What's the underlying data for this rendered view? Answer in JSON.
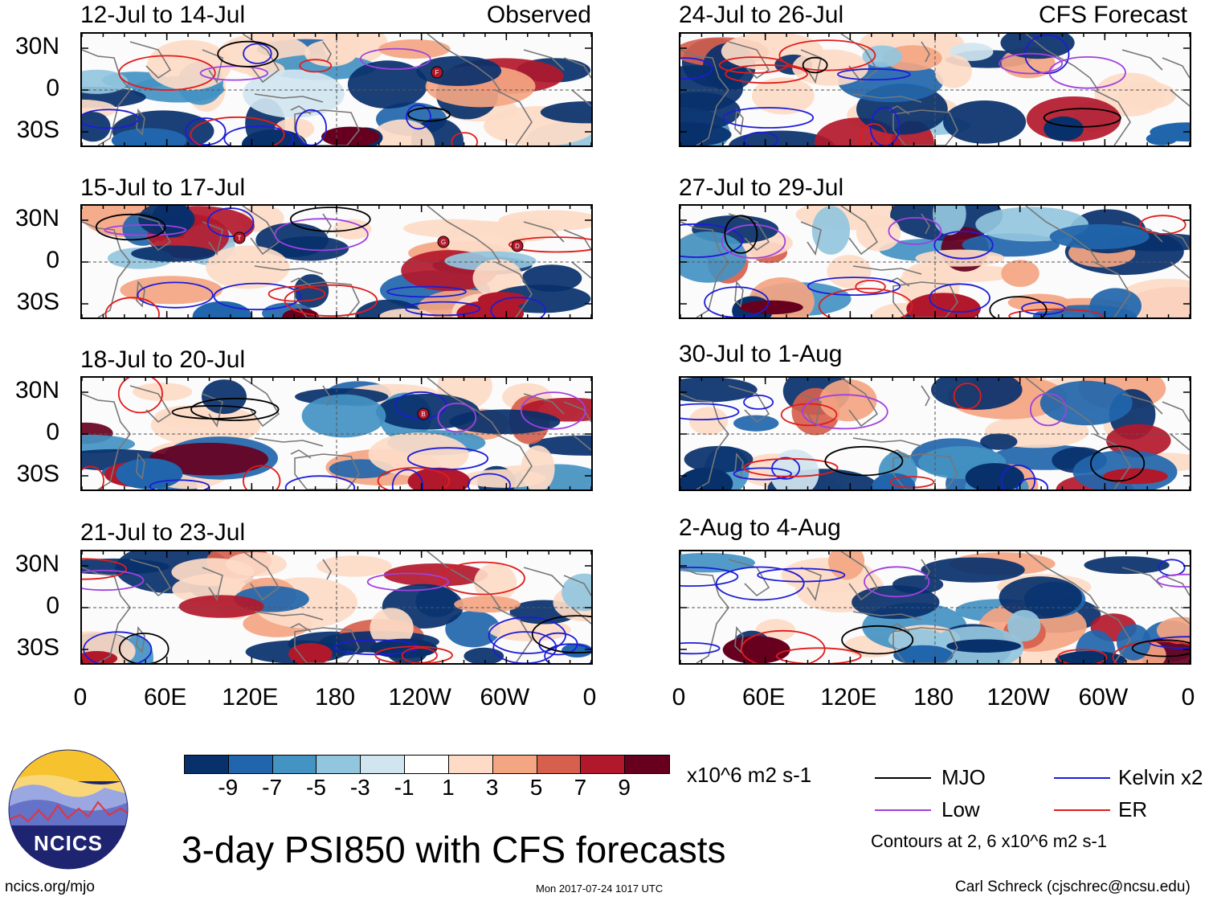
{
  "colors": {
    "mjo": "#000000",
    "kelvin": "#1c1cd8",
    "low": "#a040e0",
    "er": "#e01c1c",
    "land_outline": "#777777",
    "neg": [
      "#08306b",
      "#2166ac",
      "#4393c3",
      "#92c5de",
      "#d1e5f0"
    ],
    "neutral": "#ffffff",
    "pos": [
      "#fddbc7",
      "#f4a582",
      "#d6604d",
      "#b2182b",
      "#67001f"
    ]
  },
  "observed": {
    "tag": "Observed",
    "panels": [
      {
        "title": "12-Jul to 14-Jul",
        "storms": [
          "F"
        ]
      },
      {
        "title": "15-Jul to 17-Jul",
        "storms": [
          "T",
          "G",
          "D"
        ]
      },
      {
        "title": "18-Jul to 20-Jul",
        "storms": [
          "B"
        ]
      },
      {
        "title": "21-Jul to 23-Jul",
        "storms": []
      }
    ]
  },
  "forecast": {
    "tag": "CFS Forecast",
    "panels": [
      {
        "title": "24-Jul to 26-Jul"
      },
      {
        "title": "27-Jul to 29-Jul"
      },
      {
        "title": "30-Jul to 1-Aug"
      },
      {
        "title": "2-Aug to 4-Aug"
      }
    ]
  },
  "lat_labels": [
    "30N",
    "0",
    "30S"
  ],
  "lon_labels": [
    "0",
    "60E",
    "120E",
    "180",
    "120W",
    "60W",
    "0"
  ],
  "colorbar": {
    "ticks": [
      "-9",
      "-7",
      "-5",
      "-3",
      "-1",
      "1",
      "3",
      "5",
      "7",
      "9"
    ],
    "units": "x10^6 m2 s-1"
  },
  "legend": {
    "items": [
      {
        "key": "mjo",
        "label": "MJO"
      },
      {
        "key": "kelvin",
        "label": "Kelvin x2"
      },
      {
        "key": "low",
        "label": "Low"
      },
      {
        "key": "er",
        "label": "ER"
      }
    ],
    "note": "Contours at 2, 6 x10^6 m2 s-1"
  },
  "logo": {
    "text": "NCICS"
  },
  "footer": {
    "title": "3-day PSI850 with CFS forecasts",
    "url": "ncics.org/mjo",
    "timestamp": "Mon 2017-07-24 1017 UTC",
    "credit": "Carl Schreck (cjschrec@ncsu.edu)"
  }
}
